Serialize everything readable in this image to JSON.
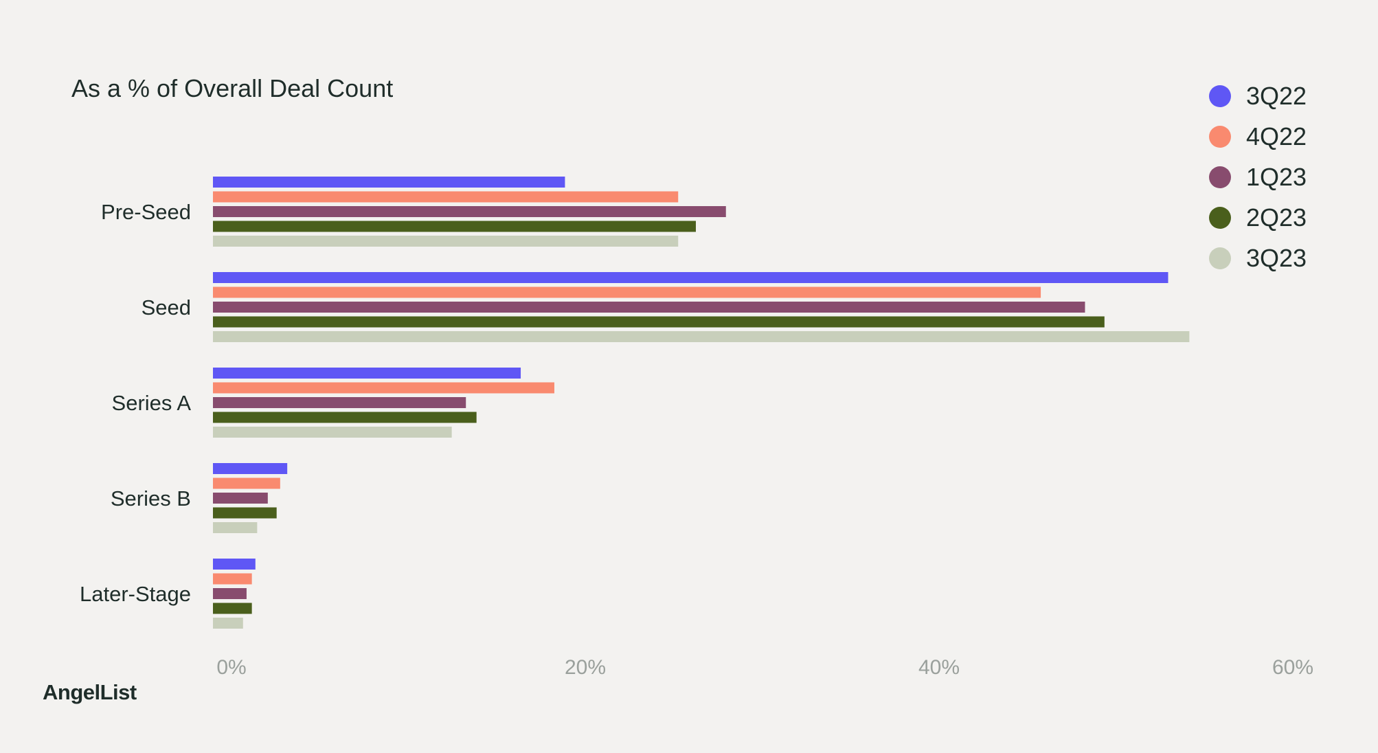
{
  "chart_data": {
    "type": "bar",
    "orientation": "horizontal",
    "title": "As a % of Overall Deal Count",
    "categories": [
      "Pre-Seed",
      "Seed",
      "Series A",
      "Series B",
      "Later-Stage"
    ],
    "series": [
      {
        "name": "3Q22",
        "color": "#5f57f5",
        "values": [
          19.9,
          54.0,
          17.4,
          4.2,
          2.4
        ]
      },
      {
        "name": "4Q22",
        "color": "#f98a6f",
        "values": [
          26.3,
          46.8,
          19.3,
          3.8,
          2.2
        ]
      },
      {
        "name": "1Q23",
        "color": "#884c6e",
        "values": [
          29.0,
          49.3,
          14.3,
          3.1,
          1.9
        ]
      },
      {
        "name": "2Q23",
        "color": "#4a5f1c",
        "values": [
          27.3,
          50.4,
          14.9,
          3.6,
          2.2
        ]
      },
      {
        "name": "3Q23",
        "color": "#c8cfbb",
        "values": [
          26.3,
          55.2,
          13.5,
          2.5,
          1.7
        ]
      }
    ],
    "xlim": [
      0,
      60
    ],
    "xticks": [
      0,
      20,
      40,
      60
    ],
    "xtick_labels": [
      "0%",
      "20%",
      "40%",
      "60%"
    ],
    "grid": false,
    "legend_position": "top-right"
  },
  "brand": {
    "name": "AngelList"
  }
}
